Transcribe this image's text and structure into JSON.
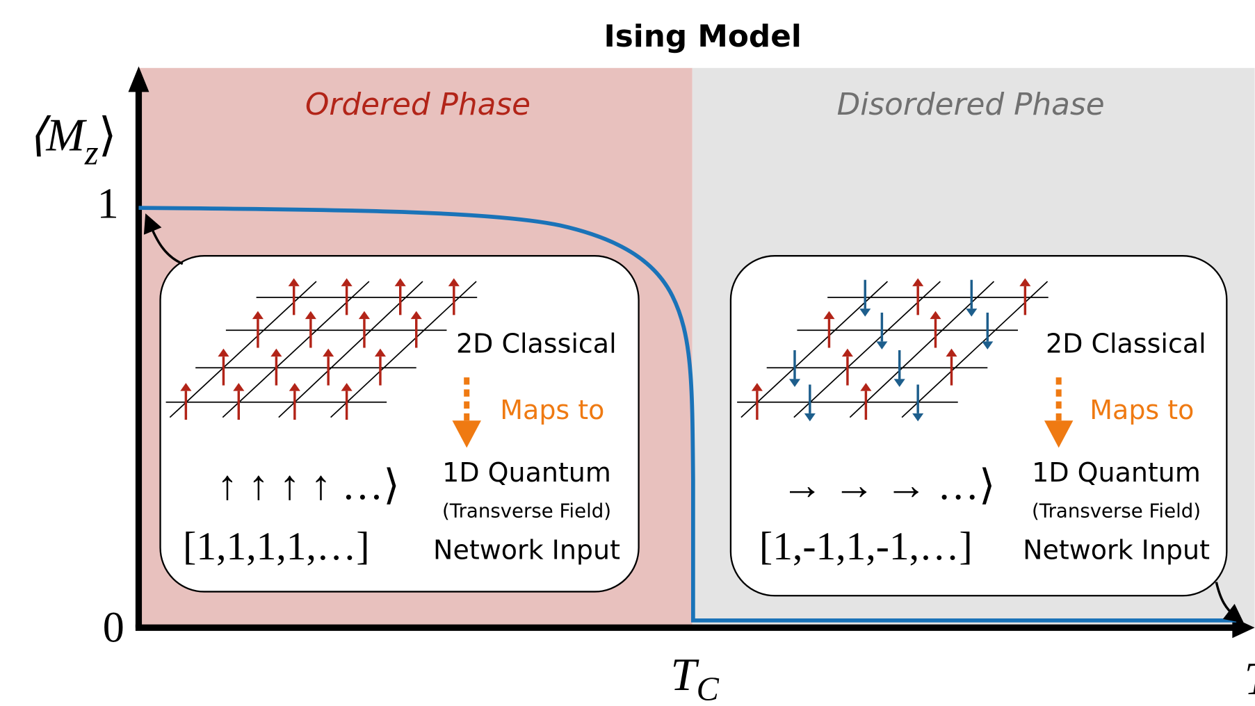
{
  "title": "Ising Model",
  "regions": [
    {
      "label": "Ordered Phase"
    },
    {
      "label": "Disordered Phase"
    }
  ],
  "axes": {
    "y_label": {
      "main": "⟨M",
      "sub": "z",
      "close": "⟩"
    },
    "y_ticks": [
      "1",
      "0"
    ],
    "x_tick": {
      "main": "T",
      "sub": "C"
    },
    "x_label": "T"
  },
  "boxes": [
    {
      "classical": "2D Classical",
      "maps_to": "Maps to",
      "quantum": "1D Quantum",
      "field": "(Transverse Field)",
      "ket": "↑ ↑ ↑ ↑ …⟩",
      "vector": "[1,1,1,1,…]",
      "input": "Network Input"
    },
    {
      "classical": "2D Classical",
      "maps_to": "Maps to",
      "quantum": "1D Quantum",
      "field": "(Transverse Field)",
      "ket": "→ → → …⟩",
      "vector": "[1,-1,1,-1,…]",
      "input": "Network Input"
    }
  ]
}
